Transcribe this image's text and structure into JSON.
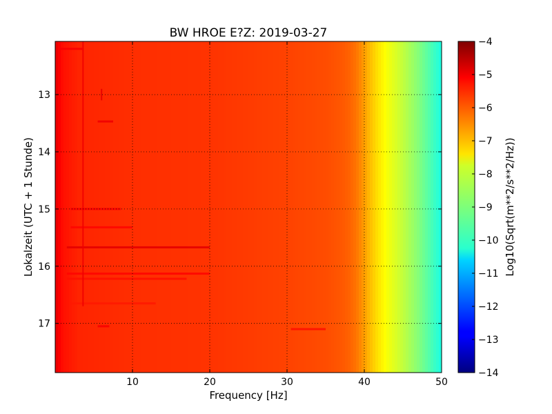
{
  "chart_data": {
    "type": "heatmap",
    "title": "BW HROE E?Z: 2019-03-27",
    "xlabel": "Frequency [Hz]",
    "ylabel": "Lokalzeit (UTC + 1 Stunde)",
    "xlim": [
      0,
      50
    ],
    "ylim": [
      12.07,
      17.86
    ],
    "y_inverted": true,
    "x_ticks": [
      10,
      20,
      30,
      40,
      50
    ],
    "x_tick_labels": [
      "10",
      "20",
      "30",
      "40",
      "50"
    ],
    "y_ticks": [
      13,
      14,
      15,
      16,
      17
    ],
    "y_tick_labels": [
      "13",
      "14",
      "15",
      "16",
      "17"
    ],
    "grid": true,
    "colormap": "jet",
    "colorbar": {
      "label": "Log10(Sqrt(m**2/s**2/Hz))",
      "range": [
        -14,
        -4
      ],
      "ticks": [
        -4,
        -5,
        -6,
        -7,
        -8,
        -9,
        -10,
        -11,
        -12,
        -13,
        -14
      ],
      "tick_labels": [
        "−4",
        "−5",
        "−6",
        "−7",
        "−8",
        "−9",
        "−10",
        "−11",
        "−12",
        "−13",
        "−14"
      ]
    },
    "frequency_profile": {
      "freq_hz": [
        0,
        1,
        3,
        10,
        20,
        30,
        35,
        37,
        38,
        39,
        40,
        41,
        42,
        43,
        44,
        45,
        46,
        47,
        48,
        49,
        50
      ],
      "level": [
        -5.0,
        -5.4,
        -5.6,
        -5.7,
        -5.75,
        -5.9,
        -6.0,
        -6.1,
        -6.2,
        -6.4,
        -6.8,
        -7.2,
        -7.55,
        -7.85,
        -8.1,
        -8.35,
        -8.65,
        -8.95,
        -9.3,
        -9.65,
        -10.0
      ]
    },
    "horizontal_bands": [
      {
        "time": 12.2,
        "f_start": 0.5,
        "f_end": 3.5,
        "level": -5.2
      },
      {
        "time": 13.47,
        "f_start": 5.5,
        "f_end": 7.5,
        "level": -5.1
      },
      {
        "time": 15.0,
        "f_start": 2.0,
        "f_end": 8.5,
        "level": -5.2
      },
      {
        "time": 15.32,
        "f_start": 2.0,
        "f_end": 10.0,
        "level": -5.3
      },
      {
        "time": 15.67,
        "f_start": 1.5,
        "f_end": 20.0,
        "level": -5.0
      },
      {
        "time": 16.13,
        "f_start": 1.5,
        "f_end": 20.0,
        "level": -5.3
      },
      {
        "time": 16.22,
        "f_start": 1.5,
        "f_end": 17.0,
        "level": -5.4
      },
      {
        "time": 16.65,
        "f_start": 2.0,
        "f_end": 13.0,
        "level": -5.5
      },
      {
        "time": 17.05,
        "f_start": 5.5,
        "f_end": 7.0,
        "level": -5.2
      },
      {
        "time": 17.1,
        "f_start": 30.5,
        "f_end": 35.0,
        "level": -5.4
      }
    ],
    "vertical_lines": [
      {
        "freq": 3.6,
        "t_start": 12.07,
        "t_end": 16.7,
        "level": -5.1
      },
      {
        "freq": 6.0,
        "t_start": 12.9,
        "t_end": 13.1,
        "level": -5.0
      }
    ]
  }
}
